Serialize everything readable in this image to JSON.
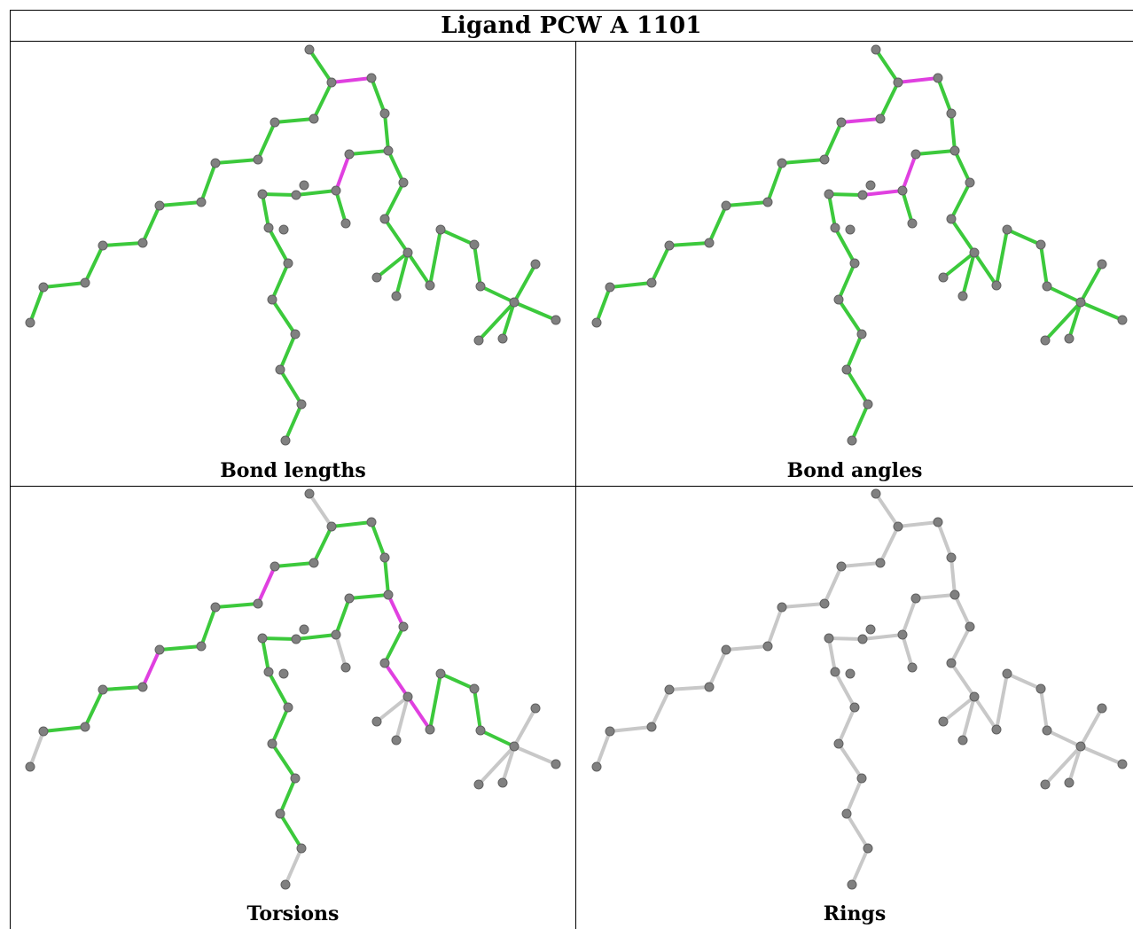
{
  "title": "Ligand PCW A 1101",
  "colors": {
    "atom": "#808080",
    "normal_bond": "#3cc93c",
    "outlier_bond": "#e040e0",
    "unassessed_bond": "#c8c8c8"
  },
  "panels": [
    {
      "caption": "Bond lengths",
      "outliers": [
        [
          3,
          4
        ],
        [
          9,
          10
        ]
      ],
      "unassessed": []
    },
    {
      "caption": "Bond angles",
      "outliers": [
        [
          3,
          4
        ],
        [
          4,
          5
        ],
        [
          9,
          10
        ],
        [
          10,
          11
        ]
      ],
      "unassessed": []
    },
    {
      "caption": "Torsions",
      "outliers": [
        [
          5,
          6
        ],
        [
          8,
          20
        ],
        [
          22,
          23
        ],
        [
          22,
          24
        ],
        [
          25,
          27
        ]
      ],
      "unassessed": [
        [
          0,
          1
        ],
        [
          17,
          18
        ],
        [
          3,
          2
        ],
        [
          26,
          36
        ],
        [
          37,
          39
        ],
        [
          37,
          40
        ],
        [
          37,
          41
        ],
        [
          38,
          42
        ],
        [
          38,
          43
        ],
        [
          38,
          44
        ],
        [
          18,
          19
        ],
        [
          12,
          13
        ]
      ]
    },
    {
      "caption": "Rings",
      "outliers": [],
      "unassessed": "all"
    }
  ]
}
